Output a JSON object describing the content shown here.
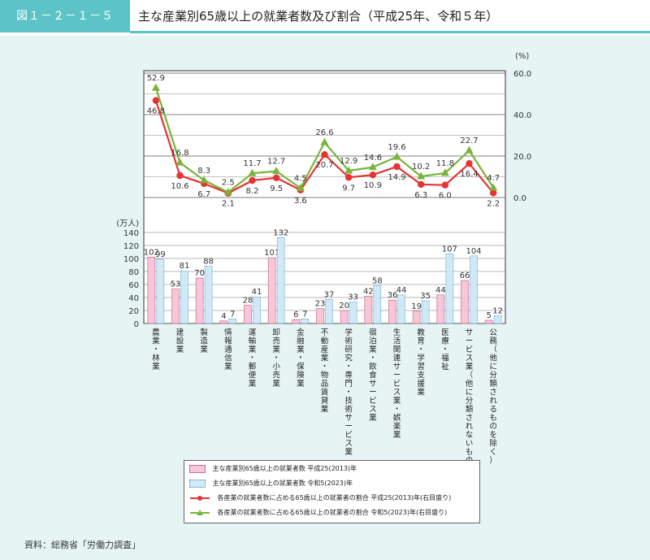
{
  "header": {
    "figure_no": "図１－２－１－５",
    "title": "主な産業別65歳以上の就業者数及び割合（平成25年、令和５年）"
  },
  "source": "資料：総務省「労働力調査」",
  "colors": {
    "accent": "#5cc3c6",
    "bar2013": "#f7c6d9",
    "bar2023": "#cfe9f7",
    "line2013": "#e83232",
    "line2023": "#77b43a"
  },
  "chart_data": {
    "type": "bar",
    "categories": [
      "農業，林業",
      "建設業",
      "製造業",
      "情報通信業",
      "運輸業，郵便業",
      "卸売業，小売業",
      "金融業，保険業",
      "不動産業，物品賃貸業",
      "学術研究，専門・技術サービス業",
      "宿泊業，飲食サービス業",
      "生活関連サービス業，娯楽業",
      "教育，学習支援業",
      "医療，福祉",
      "サービス業(他に分類されないもの)",
      "公務(他に分類されるものを除く)"
    ],
    "bar_series": [
      {
        "name": "主な産業別65歳以上の就業者数 平成25(2013)年",
        "values": [
          102,
          53,
          70,
          4,
          28,
          101,
          6,
          23,
          20,
          42,
          36,
          19,
          44,
          66,
          5
        ]
      },
      {
        "name": "主な産業別65歳以上の就業者数 令和5(2023)年",
        "values": [
          99,
          81,
          88,
          7,
          41,
          132,
          7,
          37,
          33,
          58,
          44,
          35,
          107,
          104,
          12
        ]
      }
    ],
    "line_series": [
      {
        "name": "各産業の就業者数に占める65歳以上の就業者の割合 平成25(2013)年(右目盛り)",
        "values": [
          46.8,
          10.6,
          6.7,
          2.1,
          8.2,
          9.5,
          3.6,
          20.7,
          9.7,
          10.9,
          14.9,
          6.3,
          6.0,
          16.4,
          2.2
        ]
      },
      {
        "name": "各産業の就業者数に占める65歳以上の就業者の割合 令和5(2023)年(右目盛り)",
        "values": [
          52.9,
          16.8,
          8.3,
          2.5,
          11.7,
          12.7,
          4.5,
          26.6,
          12.9,
          14.6,
          19.6,
          10.2,
          11.8,
          22.7,
          4.7
        ]
      }
    ],
    "left_axis": {
      "unit": "(万人)",
      "ticks": [
        0,
        20,
        40,
        60,
        80,
        100,
        120,
        140
      ],
      "range": [
        0,
        140
      ]
    },
    "right_axis": {
      "unit": "(%)",
      "ticks": [
        "0.0",
        "20.0",
        "40.0",
        "60.0"
      ],
      "range": [
        0,
        60
      ]
    }
  }
}
